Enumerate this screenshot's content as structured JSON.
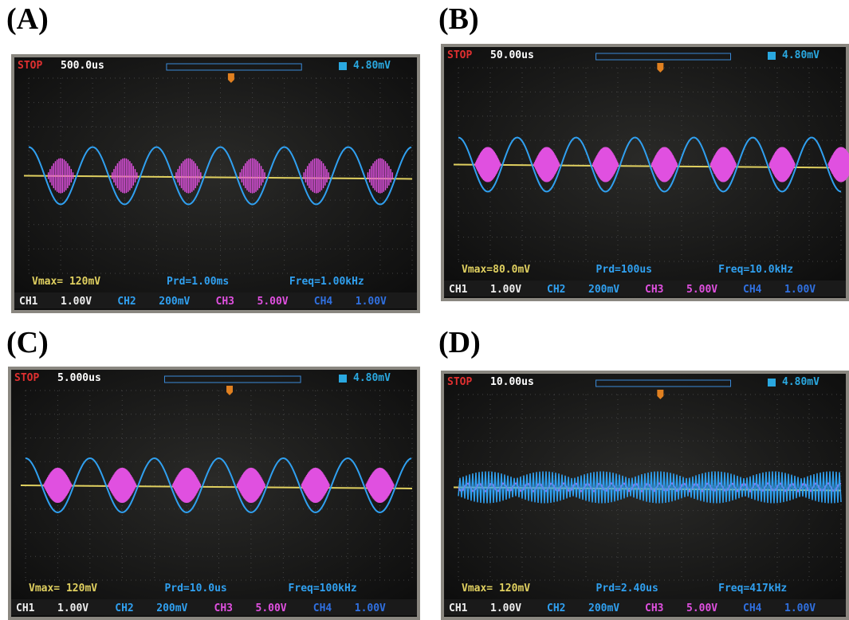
{
  "panels": [
    {
      "label": "(A)",
      "screen": {
        "status": "STOP",
        "timebase": "500.0us",
        "trigger": "4.80mV",
        "vmax": "Vmax= 120mV",
        "period": "Prd=1.00ms",
        "freq": "Freq=1.00kHz"
      },
      "channels": [
        {
          "name": "CH1",
          "scale": "1.00V"
        },
        {
          "name": "CH2",
          "scale": "200mV"
        },
        {
          "name": "CH3",
          "scale": "5.00V"
        },
        {
          "name": "CH4",
          "scale": "1.00V"
        }
      ]
    },
    {
      "label": "(B)",
      "screen": {
        "status": "STOP",
        "timebase": "50.00us",
        "trigger": "4.80mV",
        "vmax": "Vmax=80.0mV",
        "period": "Prd=100us",
        "freq": "Freq=10.0kHz"
      },
      "channels": [
        {
          "name": "CH1",
          "scale": "1.00V"
        },
        {
          "name": "CH2",
          "scale": "200mV"
        },
        {
          "name": "CH3",
          "scale": "5.00V"
        },
        {
          "name": "CH4",
          "scale": "1.00V"
        }
      ]
    },
    {
      "label": "(C)",
      "screen": {
        "status": "STOP",
        "timebase": "5.000us",
        "trigger": "4.80mV",
        "vmax": "Vmax= 120mV",
        "period": "Prd=10.0us",
        "freq": "Freq=100kHz"
      },
      "channels": [
        {
          "name": "CH1",
          "scale": "1.00V"
        },
        {
          "name": "CH2",
          "scale": "200mV"
        },
        {
          "name": "CH3",
          "scale": "5.00V"
        },
        {
          "name": "CH4",
          "scale": "1.00V"
        }
      ]
    },
    {
      "label": "(D)",
      "screen": {
        "status": "STOP",
        "timebase": "10.00us",
        "trigger": "4.80mV",
        "vmax": "Vmax= 120mV",
        "period": "Prd=2.40us",
        "freq": "Freq=417kHz"
      },
      "channels": [
        {
          "name": "CH1",
          "scale": "1.00V"
        },
        {
          "name": "CH2",
          "scale": "200mV"
        },
        {
          "name": "CH3",
          "scale": "5.00V"
        },
        {
          "name": "CH4",
          "scale": "1.00V"
        }
      ]
    }
  ]
}
